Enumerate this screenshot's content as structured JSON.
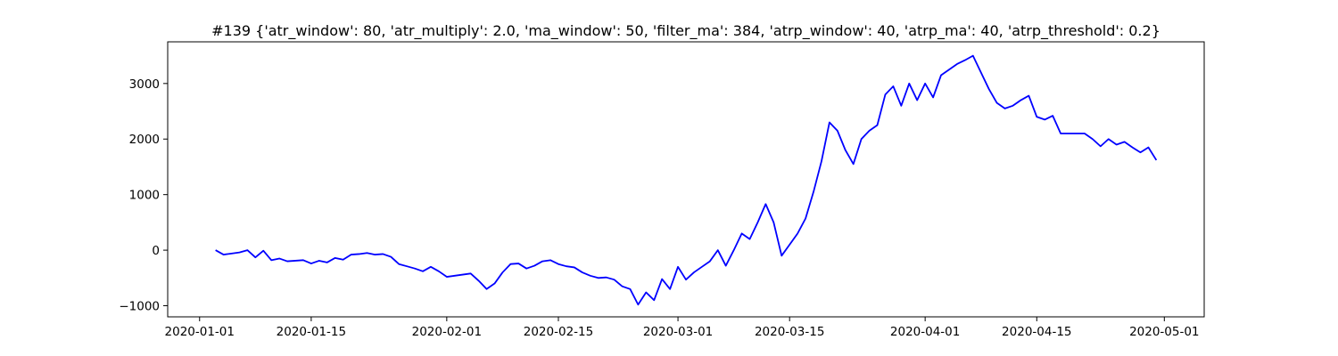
{
  "chart_data": {
    "type": "line",
    "title": "#139 {'atr_window': 80, 'atr_multiply': 2.0, 'ma_window': 50, 'filter_ma': 384, 'atrp_window': 40, 'atrp_ma': 40, 'atrp_threshold': 0.2}",
    "color": "#0000ff",
    "x": [
      "2020-01-03",
      "2020-01-04",
      "2020-01-05",
      "2020-01-06",
      "2020-01-07",
      "2020-01-08",
      "2020-01-09",
      "2020-01-10",
      "2020-01-11",
      "2020-01-12",
      "2020-01-13",
      "2020-01-14",
      "2020-01-15",
      "2020-01-16",
      "2020-01-17",
      "2020-01-18",
      "2020-01-19",
      "2020-01-20",
      "2020-01-21",
      "2020-01-22",
      "2020-01-23",
      "2020-01-24",
      "2020-01-25",
      "2020-01-26",
      "2020-01-27",
      "2020-01-28",
      "2020-01-29",
      "2020-01-30",
      "2020-01-31",
      "2020-02-01",
      "2020-02-02",
      "2020-02-03",
      "2020-02-04",
      "2020-02-05",
      "2020-02-06",
      "2020-02-07",
      "2020-02-08",
      "2020-02-09",
      "2020-02-10",
      "2020-02-11",
      "2020-02-12",
      "2020-02-13",
      "2020-02-14",
      "2020-02-15",
      "2020-02-16",
      "2020-02-17",
      "2020-02-18",
      "2020-02-19",
      "2020-02-20",
      "2020-02-21",
      "2020-02-22",
      "2020-02-23",
      "2020-02-24",
      "2020-02-25",
      "2020-02-26",
      "2020-02-27",
      "2020-02-28",
      "2020-02-29",
      "2020-03-01",
      "2020-03-02",
      "2020-03-03",
      "2020-03-04",
      "2020-03-05",
      "2020-03-06",
      "2020-03-07",
      "2020-03-08",
      "2020-03-09",
      "2020-03-10",
      "2020-03-11",
      "2020-03-12",
      "2020-03-13",
      "2020-03-14",
      "2020-03-15",
      "2020-03-16",
      "2020-03-17",
      "2020-03-18",
      "2020-03-19",
      "2020-03-20",
      "2020-03-21",
      "2020-03-22",
      "2020-03-23",
      "2020-03-24",
      "2020-03-25",
      "2020-03-26",
      "2020-03-27",
      "2020-03-28",
      "2020-03-29",
      "2020-03-30",
      "2020-03-31",
      "2020-04-01",
      "2020-04-02",
      "2020-04-03",
      "2020-04-04",
      "2020-04-05",
      "2020-04-06",
      "2020-04-07",
      "2020-04-08",
      "2020-04-09",
      "2020-04-10",
      "2020-04-11",
      "2020-04-12",
      "2020-04-13",
      "2020-04-14",
      "2020-04-15",
      "2020-04-16",
      "2020-04-17",
      "2020-04-18",
      "2020-04-19",
      "2020-04-20",
      "2020-04-21",
      "2020-04-22",
      "2020-04-23",
      "2020-04-24",
      "2020-04-25",
      "2020-04-26",
      "2020-04-27",
      "2020-04-28",
      "2020-04-29",
      "2020-04-30"
    ],
    "values": [
      0,
      -80,
      -60,
      -40,
      0,
      -130,
      -10,
      -180,
      -150,
      -200,
      -190,
      -180,
      -240,
      -190,
      -220,
      -140,
      -170,
      -80,
      -70,
      -50,
      -80,
      -70,
      -120,
      -250,
      -290,
      -330,
      -380,
      -300,
      -380,
      -480,
      -460,
      -440,
      -420,
      -550,
      -700,
      -600,
      -400,
      -250,
      -240,
      -330,
      -280,
      -200,
      -180,
      -250,
      -290,
      -310,
      -400,
      -460,
      -500,
      -490,
      -530,
      -650,
      -700,
      -980,
      -760,
      -900,
      -520,
      -700,
      -300,
      -530,
      -400,
      -300,
      -200,
      0,
      -280,
      0,
      300,
      200,
      500,
      830,
      500,
      -100,
      100,
      300,
      570,
      1050,
      1600,
      2300,
      2150,
      1800,
      1550,
      2000,
      2150,
      2250,
      2800,
      2950,
      2600,
      3000,
      2700,
      3000,
      2750,
      3150,
      3250,
      3350,
      3420,
      3500,
      3200,
      2900,
      2650,
      2550,
      2600,
      2700,
      2780,
      2400,
      2350,
      2420,
      2100,
      2100,
      2100,
      2100,
      2000,
      1870,
      2000,
      1900,
      1950,
      1850,
      1760,
      1850,
      1620
    ],
    "xlim": [
      "2019-12-28",
      "2020-05-06"
    ],
    "xticks": [
      "2020-01-01",
      "2020-01-15",
      "2020-02-01",
      "2020-02-15",
      "2020-03-01",
      "2020-03-15",
      "2020-04-01",
      "2020-04-15",
      "2020-05-01"
    ],
    "ylim": [
      -1200,
      3750
    ],
    "yticks": [
      {
        "value": -1000,
        "label": "−1000"
      },
      0,
      1000,
      2000,
      3000
    ],
    "grid": false
  }
}
